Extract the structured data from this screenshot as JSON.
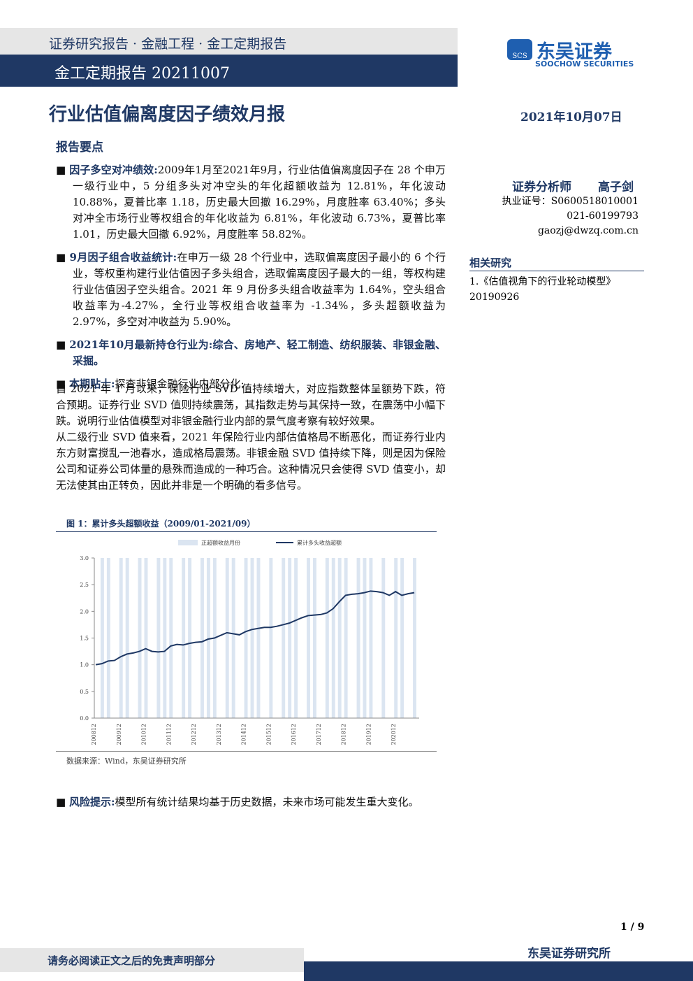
{
  "header": {
    "series": "证券研究报告 · 金融工程 · 金工定期报告",
    "report_id": "金工定期报告 20211007",
    "logo_cn": "东吴证券",
    "logo_en": "SOOCHOW SECURITIES",
    "logo_mark": "SCS"
  },
  "title": "行业估值偏离度因子绩效月报",
  "date": "2021年10月07日",
  "section": "报告要点",
  "bullets": [
    {
      "label": "因子多空对冲绩效:",
      "text": "2009年1月至2021年9月，行业估值偏离度因子在 28 个申万一级行业中，5 分组多头对冲空头的年化超额收益为 12.81%，年化波动 10.88%，夏普比率 1.18，历史最大回撤 16.29%，月度胜率 63.40%；多头对冲全市场行业等权组合的年化收益为 6.81%，年化波动 6.73%，夏普比率 1.01，历史最大回撤 6.92%，月度胜率 58.82%。"
    },
    {
      "label": "9月因子组合收益统计:",
      "text": "在申万一级 28 个行业中，选取偏离度因子最小的 6 个行业，等权重构建行业估值因子多头组合，选取偏离度因子最大的一组，等权构建行业估值因子空头组合。2021 年 9 月份多头组合收益率为 1.64%，空头组合收益率为-4.27%，全行业等权组合收益率为 -1.34%，多头超额收益为 2.97%，多空对冲收益为 5.90%。"
    },
    {
      "label": "2021年10月最新持仓行业为:",
      "text": "综合、房地产、轻工制造、纺织服装、非银金融、采掘。"
    },
    {
      "label": "本期贴士:",
      "text": "探查非银金融行业内部分化:"
    }
  ],
  "paragraphs": [
    "自 2021 年 1 月以来，保险行业 SVD 值持续增大，对应指数整体呈额势下跌，符合预期。证券行业 SVD 值则持续震荡，其指数走势与其保持一致，在震荡中小幅下跌。说明行业估值模型对非银金融行业内部的景气度考察有较好效果。",
    "从二级行业 SVD 值来看，2021 年保险行业内部估值格局不断恶化，而证券行业内东方财富搅乱一池春水，造成格局震荡。非银金融 SVD 值持续下降，则是因为保险公司和证券公司体量的悬殊而造成的一种巧合。这种情况只会使得 SVD 值变小，却无法使其由正转负，因此并非是一个明确的看多信号。"
  ],
  "figure_caption": "图 1：累计多头超额收益（2009/01-2021/09）",
  "figure_source": "数据来源：Wind，东吴证券研究所",
  "risk": {
    "label": "风险提示:",
    "text": "模型所有统计结果均基于历史数据，未来市场可能发生重大变化。"
  },
  "sidebar": {
    "analyst_label": "证券分析师",
    "analyst": "高子剑",
    "license": "执业证号：S0600518010001",
    "phone": "021-60199793",
    "email": "gaozj@dwzq.com.cn",
    "related_title": "相关研究",
    "related": "1.《估值视角下的行业轮动模型》20190926"
  },
  "footer": {
    "page": "1 / 9",
    "disclaimer": "请务必阅读正文之后的免责声明部分",
    "institute": "东吴证券研究所"
  },
  "chart_data": {
    "type": "line",
    "categories": [
      "200812",
      null,
      null,
      null,
      "200912",
      null,
      null,
      null,
      "201012",
      null,
      null,
      null,
      "201112",
      null,
      null,
      null,
      "201212",
      null,
      null,
      null,
      "201312",
      null,
      null,
      null,
      "201412",
      null,
      null,
      null,
      "201512",
      null,
      null,
      null,
      "201612",
      null,
      null,
      null,
      "201712",
      null,
      null,
      null,
      "201812",
      null,
      null,
      null,
      "201912",
      null,
      null,
      null,
      "202012",
      null,
      null,
      null
    ],
    "series": [
      {
        "name": "正超额收益月份",
        "color": "#dbe5f1",
        "values": [
          0,
          3,
          3,
          0,
          3,
          3,
          0,
          3,
          3,
          0,
          3,
          3,
          3,
          0,
          3,
          3,
          0,
          3,
          3,
          3,
          0,
          3,
          3,
          0,
          3,
          3,
          3,
          0,
          3,
          0,
          3,
          3,
          3,
          0,
          3,
          3,
          0,
          3,
          3,
          3,
          3,
          0,
          3,
          3,
          3,
          0,
          3,
          0,
          3,
          3,
          0,
          3
        ]
      },
      {
        "name": "累计多头收益超额",
        "color": "#1f3864",
        "values": [
          1.0,
          1.02,
          1.07,
          1.08,
          1.15,
          1.2,
          1.22,
          1.25,
          1.3,
          1.25,
          1.24,
          1.25,
          1.35,
          1.38,
          1.37,
          1.4,
          1.42,
          1.43,
          1.48,
          1.5,
          1.55,
          1.6,
          1.58,
          1.56,
          1.62,
          1.66,
          1.68,
          1.7,
          1.7,
          1.72,
          1.75,
          1.78,
          1.83,
          1.88,
          1.92,
          1.93,
          1.94,
          1.97,
          2.05,
          2.18,
          2.3,
          2.32,
          2.33,
          2.35,
          2.38,
          2.37,
          2.35,
          2.3,
          2.37,
          2.3,
          2.33,
          2.35
        ]
      }
    ],
    "ylim": [
      0,
      3
    ],
    "yticks": [
      {
        "value": 0,
        "label": "0.0"
      },
      {
        "value": 0.5,
        "label": "0.5"
      },
      {
        "value": 1,
        "label": "1.0"
      },
      {
        "value": 1.5,
        "label": "1.5"
      },
      {
        "value": 2,
        "label": "2.0"
      },
      {
        "value": 2.5,
        "label": "2.5"
      },
      {
        "value": 3,
        "label": "3.0"
      }
    ]
  }
}
